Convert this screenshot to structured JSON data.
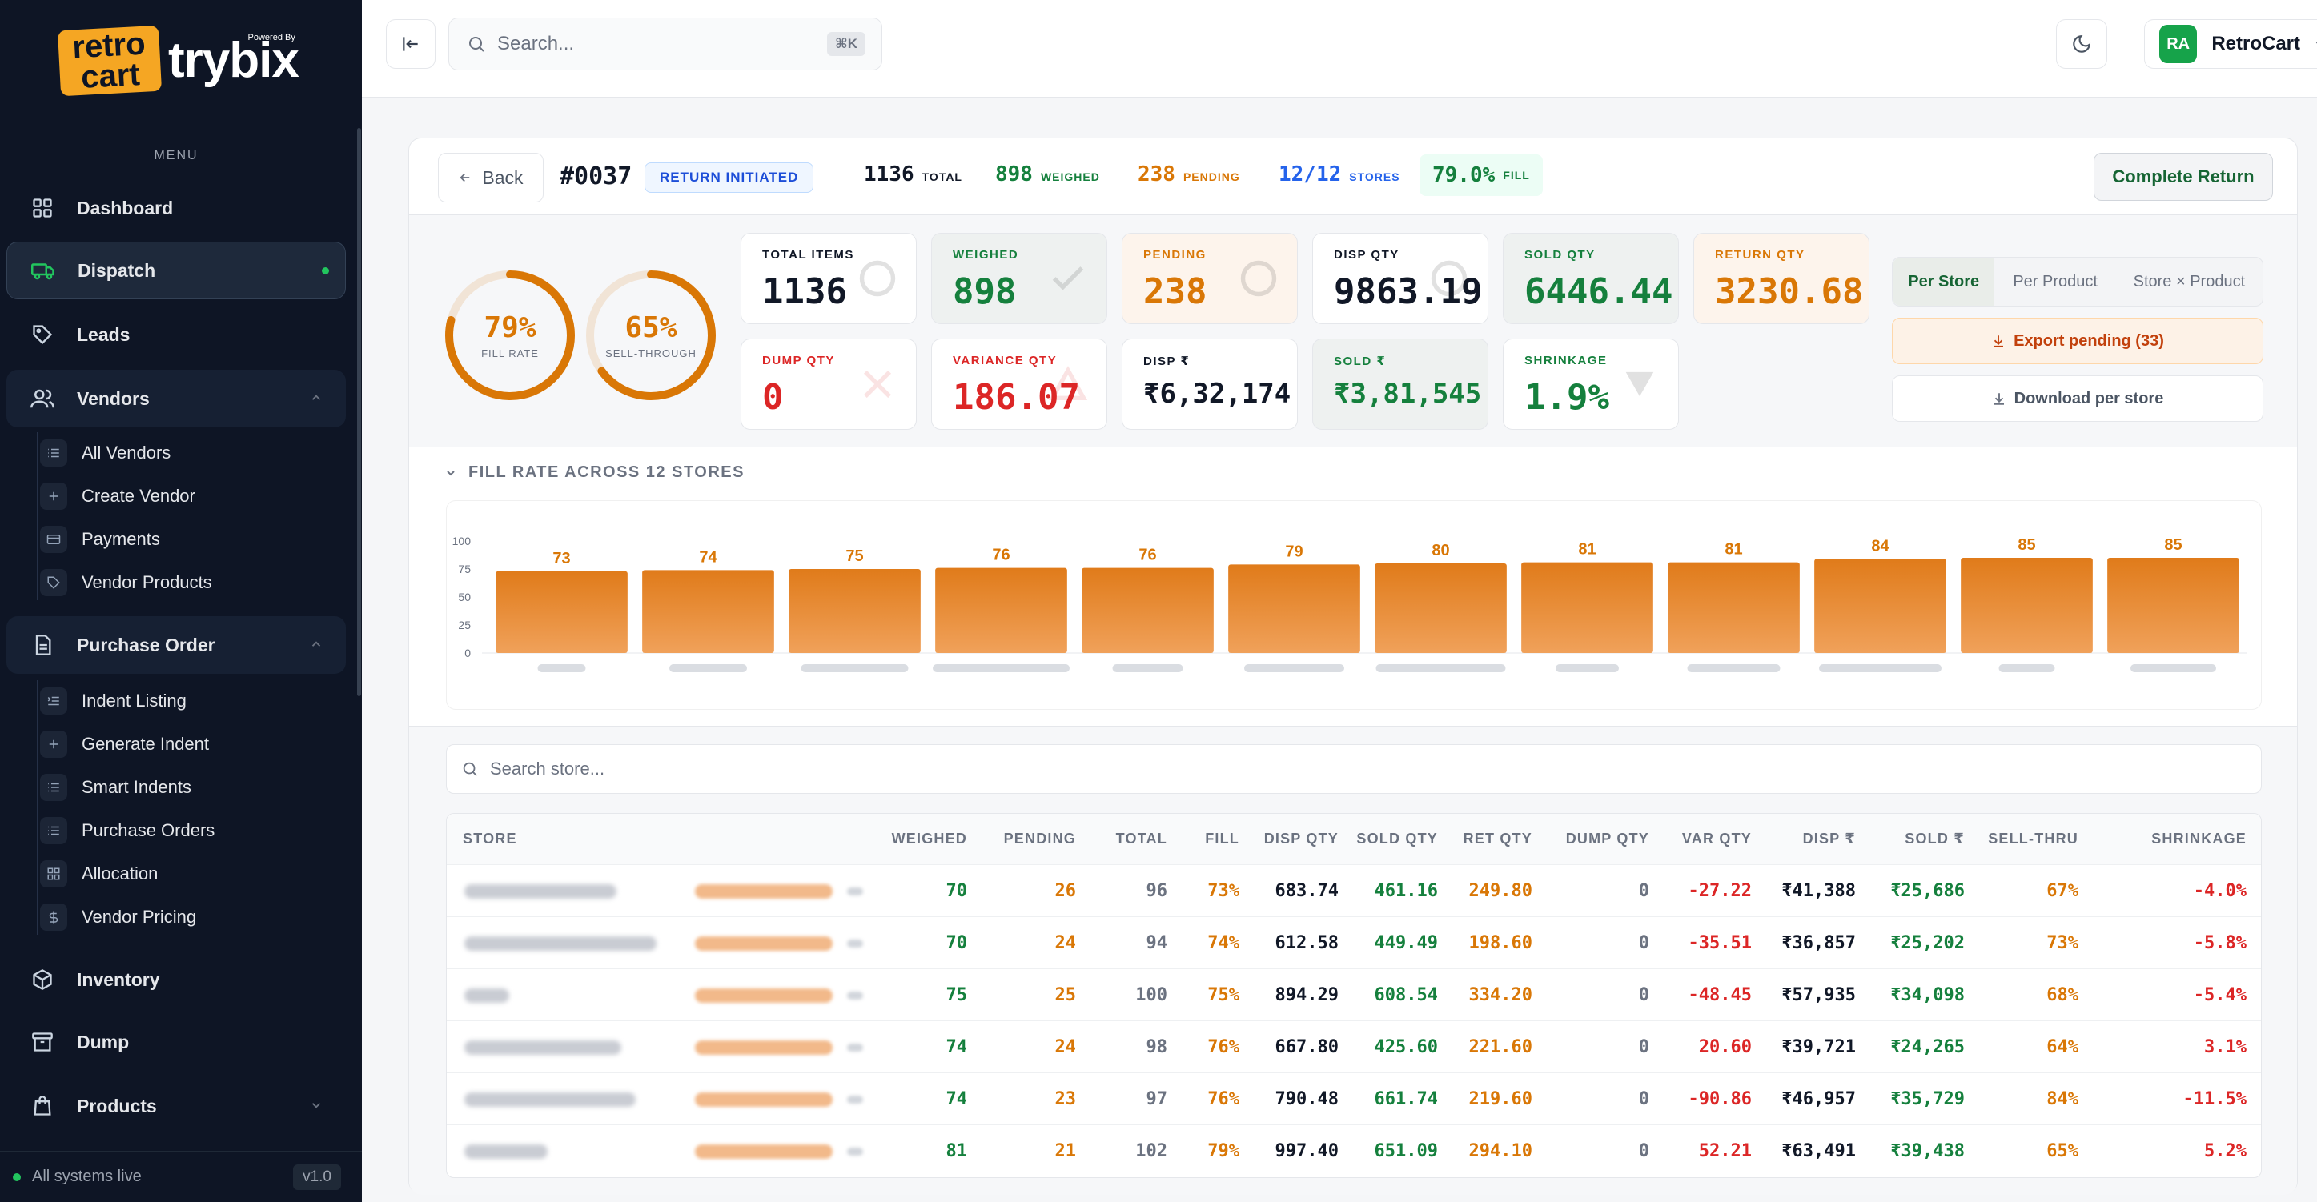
{
  "brand": {
    "badge_line1": "retro",
    "badge_line2": "cart",
    "powered_by": "Powered By",
    "name": "trybix"
  },
  "sidebar": {
    "menu_label": "MENU",
    "items": [
      {
        "label": "Dashboard",
        "icon": "grid-icon"
      },
      {
        "label": "Dispatch",
        "icon": "truck-icon",
        "active": true
      },
      {
        "label": "Leads",
        "icon": "tag-icon"
      },
      {
        "label": "Vendors",
        "icon": "users-icon",
        "expanded": true
      },
      {
        "label": "Purchase Order",
        "icon": "document-icon",
        "expanded": true
      },
      {
        "label": "Inventory",
        "icon": "box-icon"
      },
      {
        "label": "Dump",
        "icon": "archive-icon"
      },
      {
        "label": "Products",
        "icon": "bag-icon",
        "expanded": false
      }
    ],
    "vendor_sub": [
      "All Vendors",
      "Create Vendor",
      "Payments",
      "Vendor Products"
    ],
    "po_sub": [
      "Indent Listing",
      "Generate Indent",
      "Smart Indents",
      "Purchase Orders",
      "Allocation",
      "Vendor Pricing"
    ],
    "status": "All systems live",
    "version": "v1.0"
  },
  "topbar": {
    "search_placeholder": "Search...",
    "shortcut": "⌘K",
    "user_initials": "RA",
    "user_name": "RetroCart"
  },
  "header": {
    "back_label": "Back",
    "order_id": "#0037",
    "status": "RETURN INITIATED",
    "stats": [
      {
        "value": "1136",
        "label": "TOTAL"
      },
      {
        "value": "898",
        "label": "WEIGHED"
      },
      {
        "value": "238",
        "label": "PENDING"
      },
      {
        "value": "12/12",
        "label": "STORES"
      },
      {
        "value": "79.0%",
        "label": "FILL"
      }
    ],
    "complete_label": "Complete Return"
  },
  "rings": [
    {
      "value": "79%",
      "label": "FILL RATE",
      "fraction": 0.79
    },
    {
      "value": "65%",
      "label": "SELL-THROUGH",
      "fraction": 0.65
    }
  ],
  "tiles": [
    {
      "label": "TOTAL ITEMS",
      "value": "1136"
    },
    {
      "label": "WEIGHED",
      "value": "898"
    },
    {
      "label": "PENDING",
      "value": "238"
    },
    {
      "label": "DISP QTY",
      "value": "9863.19"
    },
    {
      "label": "SOLD QTY",
      "value": "6446.44"
    },
    {
      "label": "RETURN QTY",
      "value": "3230.68"
    },
    {
      "label": "DUMP QTY",
      "value": "0"
    },
    {
      "label": "VARIANCE QTY",
      "value": "186.07"
    },
    {
      "label": "DISP ₹",
      "value": "₹6,32,174"
    },
    {
      "label": "SOLD ₹",
      "value": "₹3,81,545"
    },
    {
      "label": "SHRINKAGE",
      "value": "1.9%"
    }
  ],
  "view_tabs": [
    "Per Store",
    "Per Product",
    "Store × Product"
  ],
  "export_label": "Export pending (33)",
  "download_label": "Download per store",
  "chart_section_title": "FILL RATE ACROSS 12 STORES",
  "chart_data": {
    "type": "bar",
    "title": "FILL RATE ACROSS 12 STORES",
    "values": [
      73,
      74,
      75,
      76,
      76,
      79,
      80,
      81,
      81,
      84,
      85,
      85
    ],
    "ylim": [
      0,
      100
    ],
    "y_ticks": [
      "100",
      "75",
      "50",
      "25",
      "0"
    ],
    "color": "#e07b1a"
  },
  "store_search_placeholder": "Search store...",
  "table": {
    "columns": [
      "STORE",
      "WEIGHED",
      "PENDING",
      "TOTAL",
      "FILL",
      "DISP QTY",
      "SOLD QTY",
      "RET QTY",
      "DUMP QTY",
      "VAR QTY",
      "DISP ₹",
      "SOLD ₹",
      "SELL-THRU",
      "SHRINKAGE"
    ],
    "rows": [
      {
        "weighed": "70",
        "pending": "26",
        "total": "96",
        "fill": "73%",
        "disp_qty": "683.74",
        "sold_qty": "461.16",
        "ret_qty": "249.80",
        "dump_qty": "0",
        "var_qty": "-27.22",
        "disp_amt": "₹41,388",
        "sold_amt": "₹25,686",
        "sell_thru": "67%",
        "shrinkage": "-4.0%"
      },
      {
        "weighed": "70",
        "pending": "24",
        "total": "94",
        "fill": "74%",
        "disp_qty": "612.58",
        "sold_qty": "449.49",
        "ret_qty": "198.60",
        "dump_qty": "0",
        "var_qty": "-35.51",
        "disp_amt": "₹36,857",
        "sold_amt": "₹25,202",
        "sell_thru": "73%",
        "shrinkage": "-5.8%"
      },
      {
        "weighed": "75",
        "pending": "25",
        "total": "100",
        "fill": "75%",
        "disp_qty": "894.29",
        "sold_qty": "608.54",
        "ret_qty": "334.20",
        "dump_qty": "0",
        "var_qty": "-48.45",
        "disp_amt": "₹57,935",
        "sold_amt": "₹34,098",
        "sell_thru": "68%",
        "shrinkage": "-5.4%"
      },
      {
        "weighed": "74",
        "pending": "24",
        "total": "98",
        "fill": "76%",
        "disp_qty": "667.80",
        "sold_qty": "425.60",
        "ret_qty": "221.60",
        "dump_qty": "0",
        "var_qty": "20.60",
        "disp_amt": "₹39,721",
        "sold_amt": "₹24,265",
        "sell_thru": "64%",
        "shrinkage": "3.1%"
      },
      {
        "weighed": "74",
        "pending": "23",
        "total": "97",
        "fill": "76%",
        "disp_qty": "790.48",
        "sold_qty": "661.74",
        "ret_qty": "219.60",
        "dump_qty": "0",
        "var_qty": "-90.86",
        "disp_amt": "₹46,957",
        "sold_amt": "₹35,729",
        "sell_thru": "84%",
        "shrinkage": "-11.5%"
      },
      {
        "weighed": "81",
        "pending": "21",
        "total": "102",
        "fill": "79%",
        "disp_qty": "997.40",
        "sold_qty": "651.09",
        "ret_qty": "294.10",
        "dump_qty": "0",
        "var_qty": "52.21",
        "disp_amt": "₹63,491",
        "sold_amt": "₹39,438",
        "sell_thru": "65%",
        "shrinkage": "5.2%"
      }
    ]
  }
}
